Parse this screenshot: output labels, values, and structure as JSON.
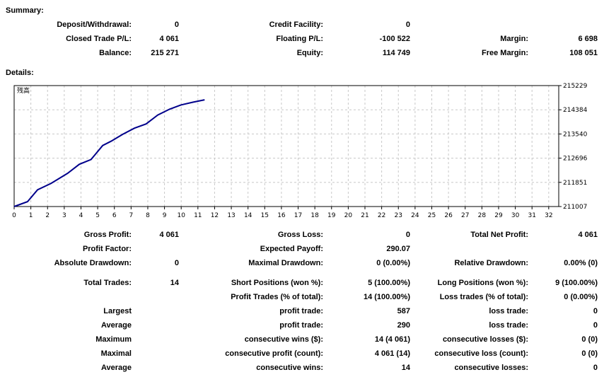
{
  "summary": {
    "heading": "Summary:",
    "deposit_withdrawal": {
      "label": "Deposit/Withdrawal:",
      "value": "0"
    },
    "credit_facility": {
      "label": "Credit Facility:",
      "value": "0"
    },
    "closed_trade_pl": {
      "label": "Closed Trade P/L:",
      "value": "4 061"
    },
    "floating_pl": {
      "label": "Floating P/L:",
      "value": "-100 522"
    },
    "margin": {
      "label": "Margin:",
      "value": "6 698"
    },
    "balance": {
      "label": "Balance:",
      "value": "215 271"
    },
    "equity": {
      "label": "Equity:",
      "value": "114 749"
    },
    "free_margin": {
      "label": "Free Margin:",
      "value": "108 051"
    }
  },
  "details": {
    "heading": "Details:",
    "gross_profit": {
      "label": "Gross Profit:",
      "value": "4 061"
    },
    "gross_loss": {
      "label": "Gross Loss:",
      "value": "0"
    },
    "total_net_profit": {
      "label": "Total Net Profit:",
      "value": "4 061"
    },
    "profit_factor": {
      "label": "Profit Factor:",
      "value": ""
    },
    "expected_payoff": {
      "label": "Expected Payoff:",
      "value": "290.07"
    },
    "absolute_drawdown": {
      "label": "Absolute Drawdown:",
      "value": "0"
    },
    "maximal_drawdown": {
      "label": "Maximal Drawdown:",
      "value": "0 (0.00%)"
    },
    "relative_drawdown": {
      "label": "Relative Drawdown:",
      "value": "0.00% (0)"
    },
    "total_trades": {
      "label": "Total Trades:",
      "value": "14"
    },
    "short_positions": {
      "label": "Short Positions (won %):",
      "value": "5 (100.00%)"
    },
    "long_positions": {
      "label": "Long Positions (won %):",
      "value": "9 (100.00%)"
    },
    "profit_trades": {
      "label": "Profit Trades (% of total):",
      "value": "14 (100.00%)"
    },
    "loss_trades": {
      "label": "Loss trades (% of total):",
      "value": "0 (0.00%)"
    },
    "largest": {
      "label": "Largest",
      "profit_label": "profit trade:",
      "profit_value": "587",
      "loss_label": "loss trade:",
      "loss_value": "0"
    },
    "average": {
      "label": "Average",
      "profit_label": "profit trade:",
      "profit_value": "290",
      "loss_label": "loss trade:",
      "loss_value": "0"
    },
    "maximum": {
      "label": "Maximum",
      "profit_label": "consecutive wins ($):",
      "profit_value": "14 (4 061)",
      "loss_label": "consecutive losses ($):",
      "loss_value": "0 (0)"
    },
    "maximal": {
      "label": "Maximal",
      "profit_label": "consecutive profit (count):",
      "profit_value": "4 061 (14)",
      "loss_label": "consecutive loss (count):",
      "loss_value": "0 (0)"
    },
    "average_consec": {
      "label": "Average",
      "profit_label": "consecutive wins:",
      "profit_value": "14",
      "loss_label": "consecutive losses:",
      "loss_value": "0"
    }
  },
  "colors": {
    "line": "#00008b",
    "grid": "#c8c8c8",
    "axis": "#000000"
  },
  "chart_data": {
    "type": "line",
    "title": "残高",
    "x_ticks": [
      "0",
      "1",
      "2",
      "3",
      "4",
      "5",
      "6",
      "7",
      "8",
      "9",
      "10",
      "11",
      "12",
      "13",
      "14",
      "15",
      "16",
      "17",
      "18",
      "19",
      "20",
      "21",
      "22",
      "23",
      "24",
      "25",
      "26",
      "27",
      "28",
      "29",
      "30",
      "31",
      "32"
    ],
    "y_ticks": [
      "215229",
      "214384",
      "213540",
      "212696",
      "211851",
      "211007"
    ],
    "xlim": [
      0,
      32.6
    ],
    "ylim": [
      211007,
      215229
    ],
    "grid": true,
    "series": [
      {
        "x": [
          0,
          0.8,
          1.4,
          2.2,
          3.2,
          3.9,
          4.6,
          5.3,
          5.8,
          6.5,
          7.2,
          7.9,
          8.6,
          9.3,
          10.0,
          10.7,
          11.4
        ],
        "y": [
          211007,
          211177,
          211593,
          211812,
          212168,
          212482,
          212650,
          213138,
          213286,
          213528,
          213742,
          213891,
          214201,
          214404,
          214554,
          214650,
          214733
        ]
      }
    ]
  }
}
